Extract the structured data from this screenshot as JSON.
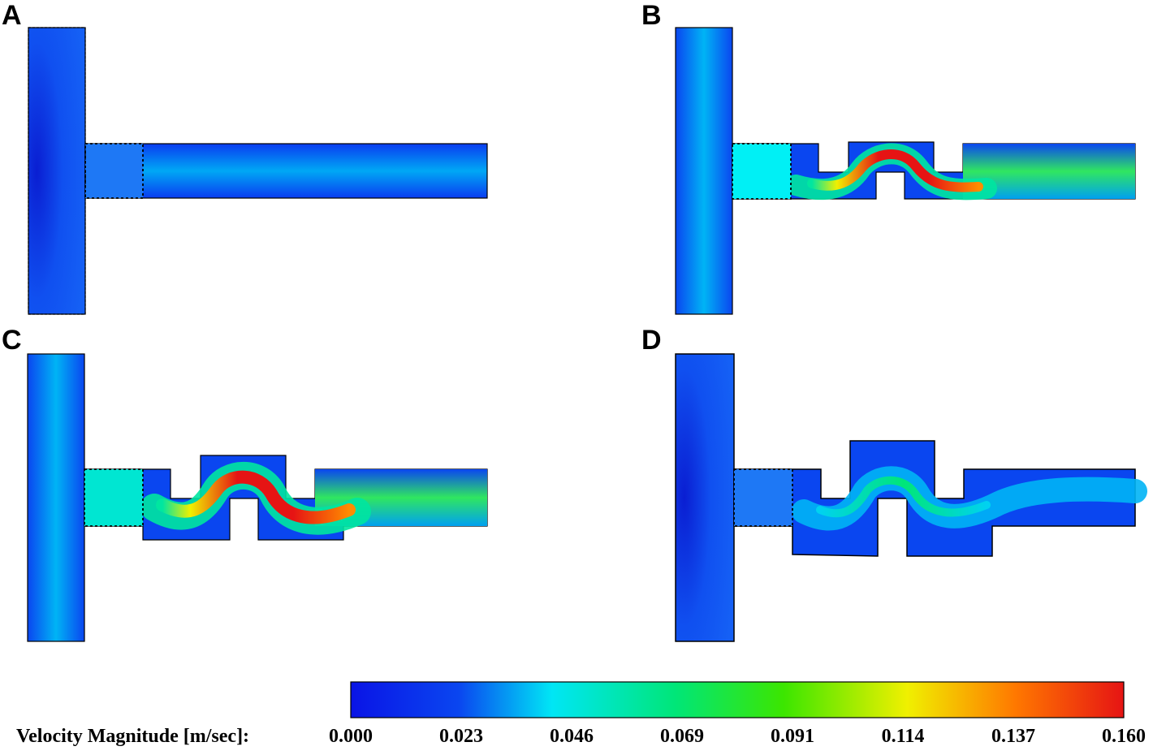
{
  "panels": [
    {
      "id": "A",
      "label": "A"
    },
    {
      "id": "B",
      "label": "B"
    },
    {
      "id": "C",
      "label": "C"
    },
    {
      "id": "D",
      "label": "D"
    }
  ],
  "legend": {
    "title": "Velocity Magnitude [m/sec]:",
    "ticks": [
      "0.000",
      "0.023",
      "0.046",
      "0.069",
      "0.091",
      "0.114",
      "0.137",
      "0.160"
    ],
    "colors": [
      "#0a14e6",
      "#0a3ce6",
      "#00e6f0",
      "#00e678",
      "#2ee600",
      "#d2f000",
      "#ff7800",
      "#e61414"
    ]
  }
}
